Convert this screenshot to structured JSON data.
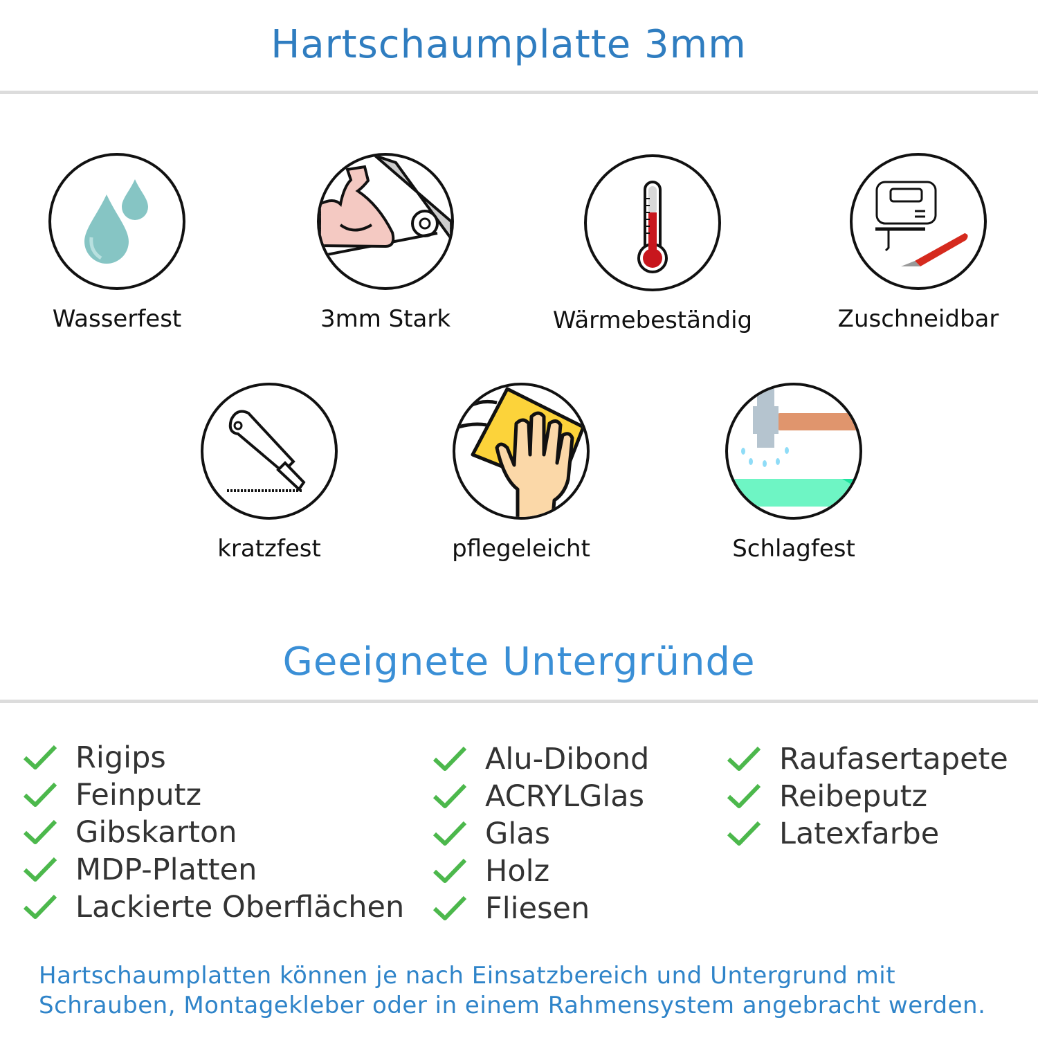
{
  "header": {
    "title": "Hartschaumplatte 3mm"
  },
  "features": [
    {
      "label": "Wasserfest",
      "icon": "water-drops-icon"
    },
    {
      "label": "3mm Stark",
      "icon": "strong-arm-icon"
    },
    {
      "label": "Wärmebeständig",
      "icon": "thermometer-icon"
    },
    {
      "label": "Zuschneidbar",
      "icon": "jigsaw-knife-icon"
    },
    {
      "label": "kratzfest",
      "icon": "cutter-knife-icon"
    },
    {
      "label": "pflegeleicht",
      "icon": "hand-cloth-icon"
    },
    {
      "label": "Schlagfest",
      "icon": "hammer-icon"
    }
  ],
  "surfaces": {
    "title": "Geeignete Untergründe",
    "columns": [
      [
        "Rigips",
        "Feinputz",
        "Gibskarton",
        "MDP-Platten",
        "Lackierte Oberflächen"
      ],
      [
        "Alu-Dibond",
        "ACRYLGlas",
        "Glas",
        "Holz",
        "Fliesen"
      ],
      [
        "Raufasertapete",
        "Reibeputz",
        "Latexfarbe"
      ]
    ],
    "check_color": "#4cb84c"
  },
  "note": {
    "line1": "Hartschaumplatten können je nach Einsatzbereich und Untergrund mit",
    "line2": "Schrauben, Montagekleber oder in einem Rahmensystem angebracht werden."
  },
  "colors": {
    "title": "#2f7dc0",
    "subtitle": "#3a8fd6",
    "note": "#2f84c9"
  }
}
